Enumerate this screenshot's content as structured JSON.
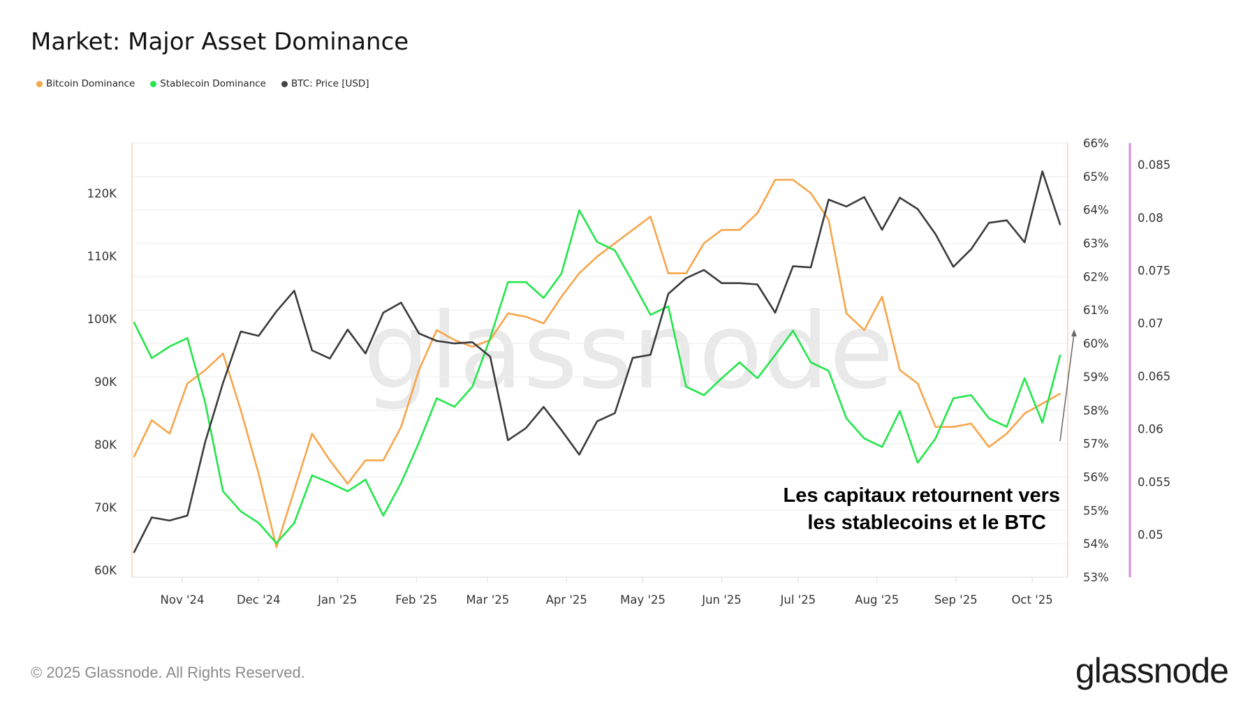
{
  "header": {
    "title": "Market: Major Asset Dominance"
  },
  "legend": [
    {
      "label": "Bitcoin Dominance",
      "color": "#f7a54a"
    },
    {
      "label": "Stablecoin Dominance",
      "color": "#22e64a"
    },
    {
      "label": "BTC: Price [USD]",
      "color": "#444444"
    }
  ],
  "footer": {
    "copyright": "© 2025 Glassnode. All Rights Reserved.",
    "logo": "glassnode"
  },
  "chart_data": {
    "type": "line",
    "title": "Market: Major Asset Dominance",
    "watermark": "glassnode",
    "x_ticks": [
      "Nov '24",
      "Dec '24",
      "Jan '25",
      "Feb '25",
      "Mar '25",
      "Apr '25",
      "May '25",
      "Jun '25",
      "Jul '25",
      "Aug '25",
      "Sep '25",
      "Oct '25"
    ],
    "x_tick_dates": [
      "2024-11-01",
      "2024-12-01",
      "2025-01-01",
      "2025-02-01",
      "2025-03-01",
      "2025-04-01",
      "2025-05-01",
      "2025-06-01",
      "2025-07-01",
      "2025-08-01",
      "2025-09-01",
      "2025-10-01"
    ],
    "x_range": [
      "2024-10-13",
      "2025-10-15"
    ],
    "grid": true,
    "legend_placement": "top-left",
    "axes": {
      "left": {
        "ticks": [
          "60K",
          "70K",
          "80K",
          "90K",
          "100K",
          "110K",
          "120K"
        ],
        "tick_values": [
          60000,
          70000,
          80000,
          90000,
          100000,
          110000,
          120000
        ],
        "series": "BTC: Price [USD]"
      },
      "right": {
        "ticks": [
          "53%",
          "54%",
          "55%",
          "56%",
          "57%",
          "58%",
          "59%",
          "60%",
          "61%",
          "62%",
          "63%",
          "64%",
          "65%",
          "66%"
        ],
        "tick_values": [
          53,
          54,
          55,
          56,
          57,
          58,
          59,
          60,
          61,
          62,
          63,
          64,
          65,
          66
        ],
        "range": [
          53,
          66
        ],
        "color": "#f7c08a",
        "series": "Bitcoin Dominance"
      },
      "right2": {
        "ticks": [
          "0.05",
          "0.055",
          "0.06",
          "0.065",
          "0.07",
          "0.075",
          "0.08",
          "0.085"
        ],
        "tick_values": [
          0.05,
          0.055,
          0.06,
          0.065,
          0.07,
          0.075,
          0.08,
          0.085
        ],
        "color": "#d98be0",
        "series": "Stablecoin Dominance"
      }
    },
    "x": [
      "2024-10-13",
      "2024-10-20",
      "2024-10-27",
      "2024-11-03",
      "2024-11-10",
      "2024-11-17",
      "2024-11-24",
      "2024-12-01",
      "2024-12-08",
      "2024-12-15",
      "2024-12-22",
      "2024-12-29",
      "2025-01-05",
      "2025-01-12",
      "2025-01-19",
      "2025-01-26",
      "2025-02-02",
      "2025-02-09",
      "2025-02-16",
      "2025-02-23",
      "2025-03-02",
      "2025-03-09",
      "2025-03-16",
      "2025-03-23",
      "2025-03-30",
      "2025-04-06",
      "2025-04-13",
      "2025-04-20",
      "2025-04-27",
      "2025-05-04",
      "2025-05-11",
      "2025-05-18",
      "2025-05-25",
      "2025-06-01",
      "2025-06-08",
      "2025-06-15",
      "2025-06-22",
      "2025-06-29",
      "2025-07-06",
      "2025-07-13",
      "2025-07-20",
      "2025-07-27",
      "2025-08-03",
      "2025-08-10",
      "2025-08-17",
      "2025-08-24",
      "2025-08-31",
      "2025-09-07",
      "2025-09-14",
      "2025-09-21",
      "2025-09-28",
      "2025-10-05",
      "2025-10-12"
    ],
    "series": [
      {
        "name": "Bitcoin Dominance",
        "axis": "right",
        "color": "#f7a54a",
        "values": [
          56.6,
          57.7,
          57.3,
          58.8,
          59.2,
          59.7,
          58.0,
          56.1,
          53.9,
          55.6,
          57.3,
          56.5,
          55.8,
          56.5,
          56.5,
          57.5,
          59.2,
          60.4,
          60.1,
          59.9,
          60.1,
          60.9,
          60.8,
          60.6,
          61.4,
          62.1,
          62.6,
          63.0,
          63.4,
          63.8,
          62.1,
          62.1,
          63.0,
          63.4,
          63.4,
          63.9,
          64.9,
          64.9,
          64.5,
          63.7,
          60.9,
          60.4,
          61.4,
          59.2,
          58.8,
          57.5,
          57.5,
          57.6,
          56.9,
          57.3,
          57.9,
          58.2,
          58.5
        ]
      },
      {
        "name": "Stablecoin Dominance",
        "axis": "right2",
        "color": "#22e64a",
        "values": [
          0.0701,
          0.0667,
          0.0678,
          0.0686,
          0.0625,
          0.0541,
          0.0522,
          0.0511,
          0.0492,
          0.0511,
          0.0556,
          0.0549,
          0.0541,
          0.0552,
          0.0518,
          0.0549,
          0.0587,
          0.0629,
          0.0621,
          0.064,
          0.0686,
          0.0739,
          0.0739,
          0.0724,
          0.0747,
          0.0807,
          0.0777,
          0.0769,
          0.0739,
          0.0708,
          0.0716,
          0.064,
          0.0632,
          0.0648,
          0.0663,
          0.0648,
          0.067,
          0.0693,
          0.0663,
          0.0655,
          0.061,
          0.0591,
          0.0583,
          0.0617,
          0.0568,
          0.0591,
          0.0629,
          0.0632,
          0.061,
          0.0602,
          0.0648,
          0.0606,
          0.067
        ]
      },
      {
        "name": "BTC: Price [USD]",
        "axis": "left",
        "color": "#3a3a3a",
        "values": [
          62800,
          68400,
          67900,
          68700,
          80400,
          89800,
          98000,
          97300,
          101200,
          104500,
          95000,
          93700,
          98300,
          94500,
          101000,
          102600,
          97700,
          96500,
          96100,
          96300,
          94000,
          80700,
          82600,
          86000,
          82300,
          78400,
          83700,
          85000,
          93800,
          94300,
          104000,
          106500,
          107800,
          105700,
          105700,
          105500,
          101000,
          108400,
          108200,
          119000,
          117900,
          119400,
          114200,
          119300,
          117500,
          113500,
          108300,
          111100,
          115300,
          115700,
          112200,
          123500,
          115000
        ]
      }
    ],
    "annotation": {
      "lines": [
        "Les capitaux retournent vers",
        "les stablecoins et le BTC"
      ]
    }
  }
}
